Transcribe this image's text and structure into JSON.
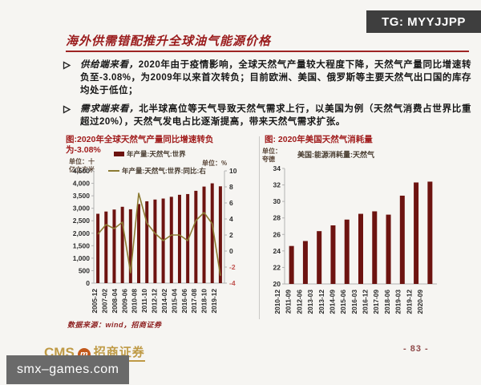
{
  "badge": {
    "text": "TG: MYYJJPP"
  },
  "slide": {
    "title": "海外供需错配推升全球油气能源价格",
    "bullets": [
      {
        "lead": "供给端来看，",
        "text": "2020年由于疫情影响，全球天然气产量较大程度下降，天然气产量同比增速转负至-3.08%，为2009年以来首次转负；目前欧洲、美国、俄罗斯等主要天然气出口国的库存均处于低位；"
      },
      {
        "lead": "需求端来看，",
        "text": "北半球高位等天气导致天然气需求上行，以美国为例（天然气消费占世界比重超过20%），天然气发电占比逐渐提高，带来天然气需求扩张。"
      }
    ],
    "source_note": "数据来源：wind，招商证券",
    "page_number": "- 83 -",
    "logo": {
      "cms": "CMS",
      "emblem": "m",
      "company": "招商证券"
    }
  },
  "watermark": {
    "text": "smx–games.com"
  },
  "chart_data": [
    {
      "type": "bar",
      "title": "图:2020年全球天然气产量同比增速转负为-3.08%",
      "unit_left": "单位：十\n亿立方米",
      "unit_right": "单位：%",
      "legend": [
        {
          "swatch": "bar",
          "label": "年产量:天然气:世界"
        },
        {
          "swatch": "line",
          "label": "年产量:天然气:世界:同比:右"
        }
      ],
      "xtick_labels": [
        "2005-12",
        "2007-02",
        "2008-04",
        "2009-06",
        "2010-08",
        "2011-10",
        "2012-12",
        "2014-02",
        "2015-04",
        "2016-06",
        "2017-08",
        "2018-10",
        "2019-12"
      ],
      "series": [
        {
          "name": "年产量:天然气:世界",
          "kind": "bar",
          "axis": "left",
          "values": [
            2780,
            2870,
            2950,
            3060,
            2960,
            3170,
            3280,
            3350,
            3390,
            3460,
            3540,
            3570,
            3700,
            3870,
            4000,
            3880
          ]
        },
        {
          "name": "年产量:天然气:世界:同比:右",
          "kind": "line",
          "axis": "right",
          "values": [
            2.1,
            3.3,
            2.8,
            3.6,
            -2.7,
            7.2,
            3.5,
            2.2,
            1.3,
            2.0,
            2.0,
            1.3,
            3.8,
            4.8,
            3.4,
            -3.08
          ]
        }
      ],
      "ylim_left": [
        0,
        4500
      ],
      "ytick_step_left": 500,
      "ylim_right": [
        -4,
        10
      ],
      "ytick_step_right": 2,
      "grid": false,
      "legend_position": "top",
      "colors": {
        "bar": "#6d1310",
        "line": "#8c7b33",
        "negative_tick": "#c0504d"
      }
    },
    {
      "type": "bar",
      "title": "图: 2020年美国天然气消耗量",
      "unit": "单位：\n夸德",
      "legend": [
        {
          "swatch": "bar",
          "label": "美国:能源消耗量:天然气"
        }
      ],
      "xtick_labels": [
        "2010-12",
        "2011-09",
        "2012-06",
        "2013-03",
        "2013-12",
        "2014-09",
        "2015-06",
        "2016-03",
        "2016-12",
        "2017-09",
        "2018-06",
        "2019-03",
        "2019-12",
        "2020-09"
      ],
      "values": [
        24.6,
        25.2,
        26.4,
        27.1,
        27.8,
        28.5,
        28.8,
        28.4,
        30.7,
        32.3,
        32.4
      ],
      "ylim": [
        20,
        34
      ],
      "ytick_step": 2,
      "grid": false,
      "legend_position": "top",
      "colors": {
        "bar": "#6d1310"
      }
    }
  ]
}
